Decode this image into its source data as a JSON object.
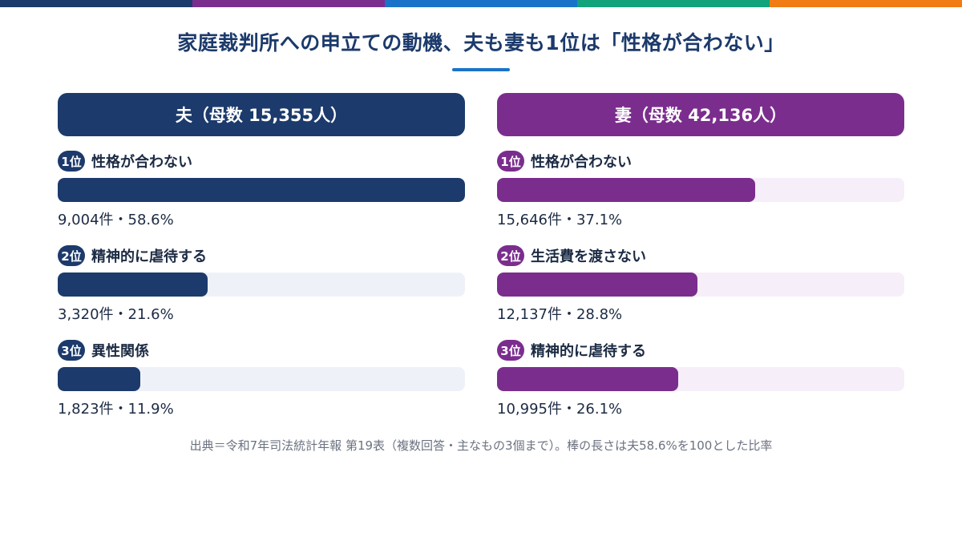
{
  "colors": {
    "topbar": [
      "#1c3a6b",
      "#7b2d8e",
      "#1a73c8",
      "#12a37a",
      "#f07c13"
    ],
    "husband": "#1c3a6b",
    "husband_track": "#eef2f8",
    "wife": "#7b2d8e",
    "wife_track": "#f6eef8",
    "underline": "#1a73c8"
  },
  "title": "家庭裁判所への申立ての動機、夫も妻も1位は「性格が合わない」",
  "footnote": "出典＝令和7年司法統計年報 第19表（複数回答・主なもの3個まで）。棒の長さは夫58.6%を100とした比率",
  "chart_data": {
    "type": "bar",
    "orientation": "horizontal",
    "scale_reference_percent": 58.6,
    "panels": [
      {
        "key": "husband",
        "header": "夫（母数 15,355人）",
        "items": [
          {
            "rank": "1位",
            "label": "性格が合わない",
            "count": 9004,
            "percent": 58.6,
            "value_text": "9,004件・58.6%"
          },
          {
            "rank": "2位",
            "label": "精神的に虐待する",
            "count": 3320,
            "percent": 21.6,
            "value_text": "3,320件・21.6%"
          },
          {
            "rank": "3位",
            "label": "異性関係",
            "count": 1823,
            "percent": 11.9,
            "value_text": "1,823件・11.9%"
          }
        ]
      },
      {
        "key": "wife",
        "header": "妻（母数 42,136人）",
        "items": [
          {
            "rank": "1位",
            "label": "性格が合わない",
            "count": 15646,
            "percent": 37.1,
            "value_text": "15,646件・37.1%"
          },
          {
            "rank": "2位",
            "label": "生活費を渡さない",
            "count": 12137,
            "percent": 28.8,
            "value_text": "12,137件・28.8%"
          },
          {
            "rank": "3位",
            "label": "精神的に虐待する",
            "count": 10995,
            "percent": 26.1,
            "value_text": "10,995件・26.1%"
          }
        ]
      }
    ]
  }
}
